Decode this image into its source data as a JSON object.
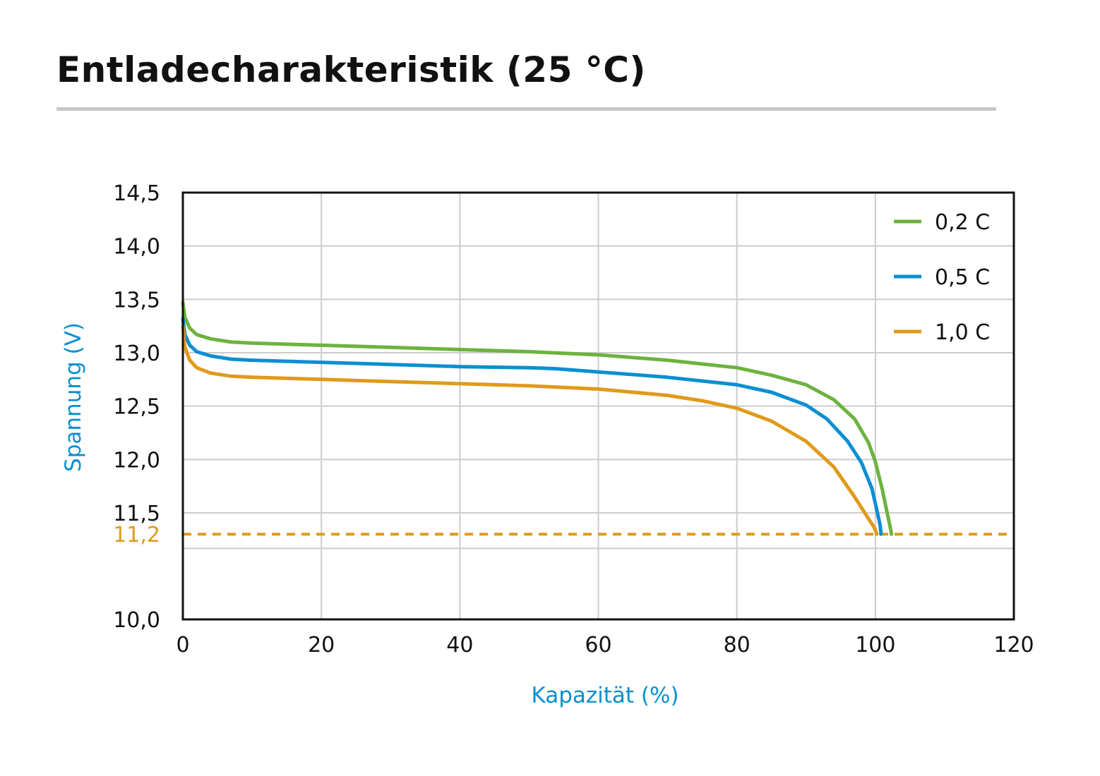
{
  "title": "Entladecharakteristik (25 °C)",
  "chart_data": {
    "type": "line",
    "xlabel": "Kapazität (%)",
    "ylabel": "Spannung (V)",
    "xlim": [
      0,
      120
    ],
    "ylim": [
      10.0,
      14.5
    ],
    "axis_break": "y axis compressed between 10,0 and 11,5",
    "x_ticks": [
      "0",
      "20",
      "40",
      "60",
      "80",
      "100",
      "120"
    ],
    "y_ticks": [
      {
        "value": 14.5,
        "label": "14,5"
      },
      {
        "value": 14.0,
        "label": "14,0"
      },
      {
        "value": 13.5,
        "label": "13,5"
      },
      {
        "value": 13.0,
        "label": "13,0"
      },
      {
        "value": 12.5,
        "label": "12,5"
      },
      {
        "value": 12.0,
        "label": "12,0"
      },
      {
        "value": 11.5,
        "label": "11,5"
      },
      {
        "value": 10.0,
        "label": "10,0"
      }
    ],
    "grid": true,
    "legend_position": "top-right",
    "cutoff": {
      "value": 11.2,
      "label": "11,2",
      "color": "#e09a1a",
      "style": "dashed"
    },
    "series": [
      {
        "name": "0,2 C",
        "color": "#6db33f",
        "x": [
          0,
          0.3,
          1,
          2,
          4,
          7,
          10,
          20,
          30,
          40,
          50,
          60,
          70,
          80,
          85,
          90,
          94,
          97,
          99,
          100,
          101,
          101.7,
          102.1,
          102.3,
          102.3
        ],
        "y": [
          13.47,
          13.33,
          13.23,
          13.17,
          13.13,
          13.1,
          13.09,
          13.07,
          13.05,
          13.03,
          13.01,
          12.98,
          12.93,
          12.86,
          12.79,
          12.7,
          12.56,
          12.38,
          12.16,
          11.98,
          11.72,
          11.5,
          11.32,
          11.22,
          11.2
        ]
      },
      {
        "name": "0,5 C",
        "color": "#0a8fd1",
        "x": [
          0,
          0.3,
          1,
          2,
          4,
          7,
          10,
          20,
          30,
          40,
          50,
          54,
          60,
          70,
          80,
          85,
          90,
          93,
          96,
          98,
          99.5,
          100.3,
          100.7,
          100.8,
          100.8
        ],
        "y": [
          13.32,
          13.17,
          13.07,
          13.01,
          12.97,
          12.94,
          12.93,
          12.91,
          12.89,
          12.87,
          12.86,
          12.85,
          12.82,
          12.77,
          12.7,
          12.63,
          12.51,
          12.38,
          12.17,
          11.97,
          11.73,
          11.5,
          11.32,
          11.22,
          11.2
        ]
      },
      {
        "name": "1,0 C",
        "color": "#e09a1a",
        "x": [
          0,
          0.3,
          1,
          2,
          4,
          7,
          10,
          20,
          30,
          40,
          50,
          60,
          70,
          75,
          80,
          85,
          90,
          94,
          97,
          99,
          99.8,
          100.1,
          100.2
        ],
        "y": [
          13.25,
          13.05,
          12.93,
          12.86,
          12.81,
          12.78,
          12.77,
          12.75,
          12.73,
          12.71,
          12.69,
          12.66,
          12.6,
          12.55,
          12.48,
          12.36,
          12.17,
          11.93,
          11.65,
          11.42,
          11.3,
          11.23,
          11.2
        ]
      }
    ]
  }
}
